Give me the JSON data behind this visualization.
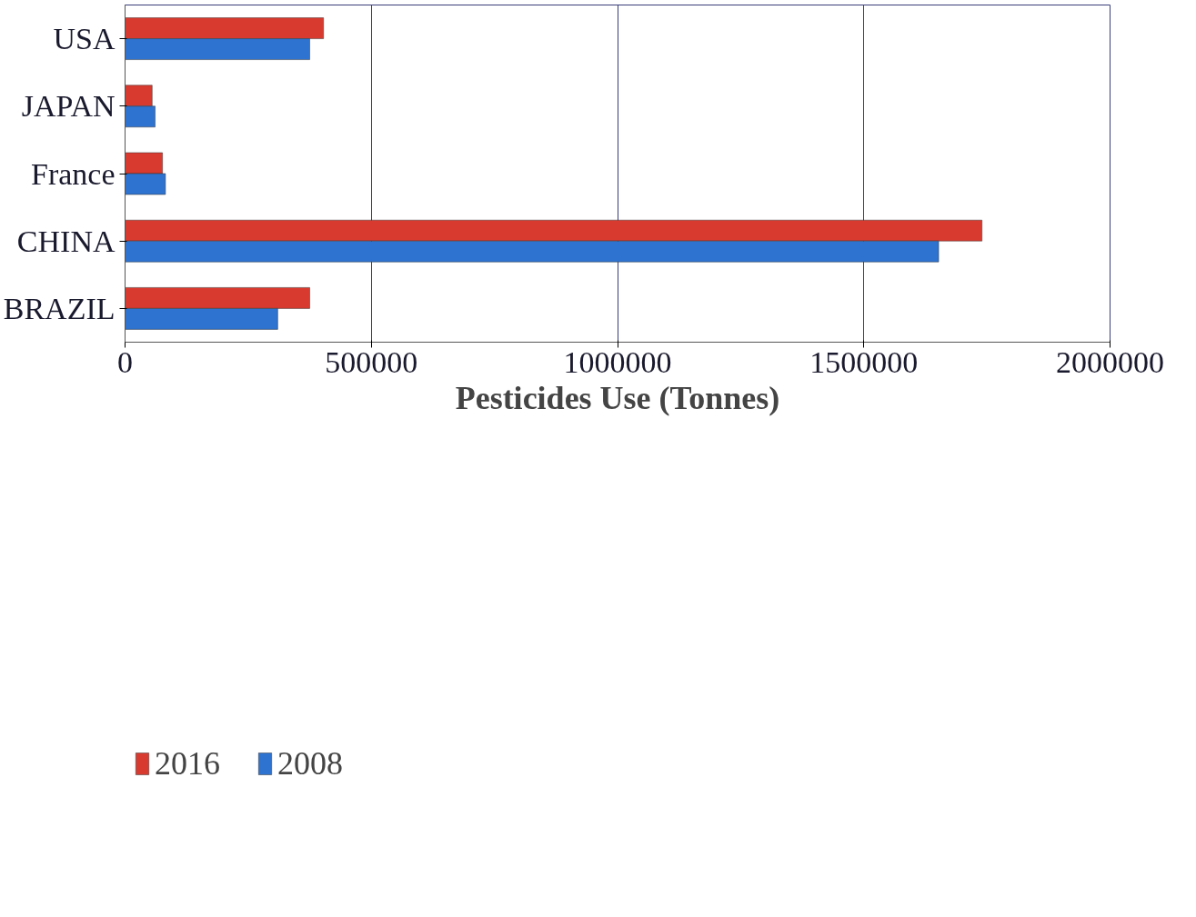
{
  "chart_data": {
    "type": "bar",
    "orientation": "horizontal",
    "xlabel": "Pesticides Use (Tonnes)",
    "categories": [
      "USA",
      "JAPAN",
      "France",
      "CHINA",
      "BRAZIL"
    ],
    "series": [
      {
        "name": "2016",
        "color": "#d93a2f",
        "values": [
          403000,
          55000,
          76000,
          1740000,
          375000
        ]
      },
      {
        "name": "2008",
        "color": "#2e73d0",
        "values": [
          375000,
          61000,
          82000,
          1652000,
          310000
        ]
      }
    ],
    "xlim": [
      0,
      2000000
    ],
    "xticks": [
      0,
      500000,
      1000000,
      1500000,
      2000000
    ],
    "grid": "x",
    "legend": "bottom left"
  }
}
